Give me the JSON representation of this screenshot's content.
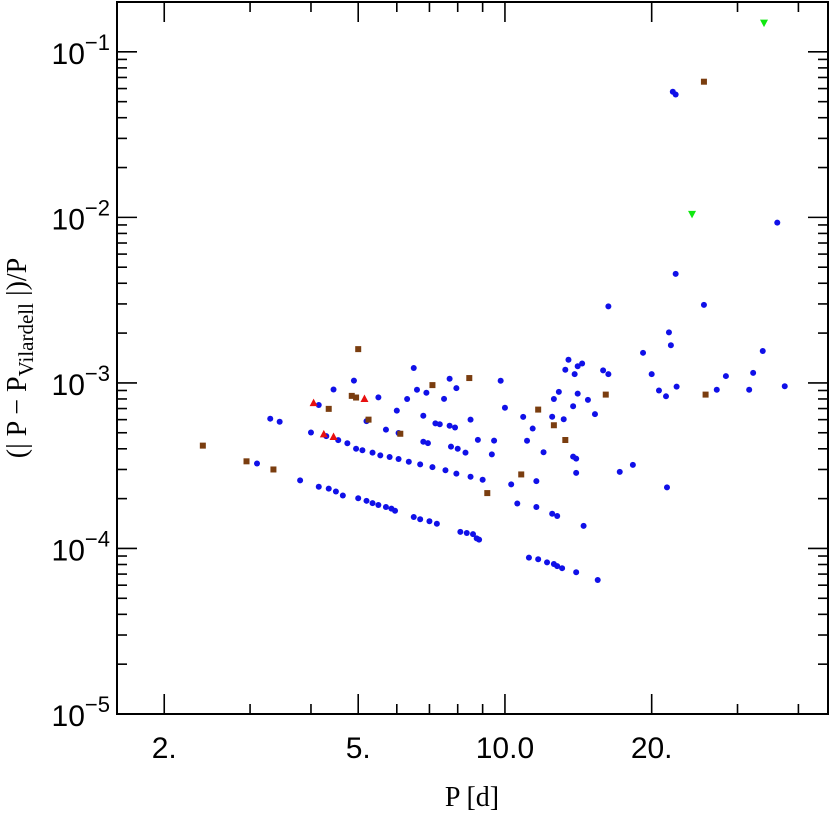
{
  "chart_data": {
    "type": "scatter",
    "xlabel": "P [d]",
    "ylabel_parts": {
      "prefix": "(| P − P",
      "subscript": "Vilardell",
      "suffix": " |)/P"
    },
    "xscale": "log",
    "yscale": "log",
    "xlim": [
      1.6,
      46
    ],
    "ylim": [
      1e-05,
      0.2
    ],
    "x_ticks": [
      {
        "value": 2,
        "label": "2."
      },
      {
        "value": 5,
        "label": "5."
      },
      {
        "value": 10,
        "label": "10.0"
      },
      {
        "value": 20,
        "label": "20."
      }
    ],
    "y_ticks": [
      {
        "value": 1e-05,
        "base": "10",
        "exp": "−5"
      },
      {
        "value": 0.0001,
        "base": "10",
        "exp": "−4"
      },
      {
        "value": 0.001,
        "base": "10",
        "exp": "−3"
      },
      {
        "value": 0.01,
        "base": "10",
        "exp": "−2"
      },
      {
        "value": 0.1,
        "base": "10",
        "exp": "−1"
      }
    ],
    "grid": false,
    "legend": "none",
    "series": [
      {
        "marker": "circle",
        "color": "#1010e8",
        "points": [
          [
            3.1,
            0.000326
          ],
          [
            3.3,
            0.000608
          ],
          [
            3.45,
            0.000583
          ],
          [
            3.8,
            0.000258
          ],
          [
            4.0,
            0.000502
          ],
          [
            4.15,
            0.000736
          ],
          [
            4.15,
            0.000236
          ],
          [
            4.3,
            0.000477
          ],
          [
            4.35,
            0.00023
          ],
          [
            4.45,
            0.000913
          ],
          [
            4.5,
            0.000221
          ],
          [
            4.55,
            0.000451
          ],
          [
            4.65,
            0.000209
          ],
          [
            4.75,
            0.000432
          ],
          [
            4.9,
            0.001033
          ],
          [
            4.95,
            0.0004
          ],
          [
            5.0,
            0.000201
          ],
          [
            5.1,
            0.000392
          ],
          [
            5.2,
            0.000588
          ],
          [
            5.2,
            0.000194
          ],
          [
            5.35,
            0.000379
          ],
          [
            5.35,
            0.000188
          ],
          [
            5.5,
            0.000818
          ],
          [
            5.5,
            0.000183
          ],
          [
            5.55,
            0.000365
          ],
          [
            5.7,
            0.000522
          ],
          [
            5.7,
            0.000178
          ],
          [
            5.8,
            0.000357
          ],
          [
            5.85,
            0.000174
          ],
          [
            5.95,
            0.000169
          ],
          [
            6.0,
            0.00068
          ],
          [
            6.05,
            0.000498
          ],
          [
            6.05,
            0.000347
          ],
          [
            6.3,
            0.0008
          ],
          [
            6.35,
            0.000334
          ],
          [
            6.5,
            0.00123
          ],
          [
            6.5,
            0.000155
          ],
          [
            6.6,
            0.00091
          ],
          [
            6.7,
            0.000322
          ],
          [
            6.7,
            0.00015
          ],
          [
            6.8,
            0.000633
          ],
          [
            6.8,
            0.000441
          ],
          [
            6.9,
            0.000872
          ],
          [
            6.95,
            0.000433
          ],
          [
            7.0,
            0.000146
          ],
          [
            7.1,
            0.00031
          ],
          [
            7.2,
            0.00057
          ],
          [
            7.25,
            0.000141
          ],
          [
            7.35,
            0.000563
          ],
          [
            7.5,
            0.000801
          ],
          [
            7.55,
            0.000297
          ],
          [
            7.7,
            0.000551
          ],
          [
            7.7,
            0.00106
          ],
          [
            7.75,
            0.000412
          ],
          [
            7.9,
            0.000538
          ],
          [
            7.95,
            0.00093
          ],
          [
            7.95,
            0.000283
          ],
          [
            8.0,
            0.0004
          ],
          [
            8.1,
            0.000126
          ],
          [
            8.3,
            0.000379
          ],
          [
            8.35,
            0.000124
          ],
          [
            8.5,
            0.0006
          ],
          [
            8.5,
            0.000271
          ],
          [
            8.6,
            0.000122
          ],
          [
            8.75,
            0.000115
          ],
          [
            8.8,
            0.000453
          ],
          [
            8.85,
            0.000113
          ],
          [
            9.0,
            0.00026
          ],
          [
            9.4,
            0.00037
          ],
          [
            9.5,
            0.000448
          ],
          [
            9.8,
            0.00103
          ],
          [
            10.0,
            0.000708
          ],
          [
            10.3,
            0.000244
          ],
          [
            10.6,
            0.000187
          ],
          [
            10.9,
            0.000624
          ],
          [
            11.1,
            0.000447
          ],
          [
            11.2,
            8.8e-05
          ],
          [
            11.4,
            0.00053
          ],
          [
            11.6,
            0.000255
          ],
          [
            11.6,
            0.000178
          ],
          [
            11.7,
            8.6e-05
          ],
          [
            12.0,
            0.000381
          ],
          [
            12.2,
            8.24e-05
          ],
          [
            12.5,
            0.000625
          ],
          [
            12.5,
            0.000162
          ],
          [
            12.6,
            0.0008
          ],
          [
            12.6,
            8.05e-05
          ],
          [
            12.8,
            0.000157
          ],
          [
            12.8,
            7.82e-05
          ],
          [
            12.9,
            0.000883
          ],
          [
            13.1,
            7.6e-05
          ],
          [
            13.2,
            0.000603
          ],
          [
            13.3,
            0.0012
          ],
          [
            13.5,
            0.00138
          ],
          [
            13.8,
            0.000723
          ],
          [
            13.8,
            0.000359
          ],
          [
            13.9,
            0.00113
          ],
          [
            14.0,
            0.000286
          ],
          [
            14.0,
            0.000349
          ],
          [
            14.0,
            7.18e-05
          ],
          [
            14.1,
            0.00126
          ],
          [
            14.1,
            0.000861
          ],
          [
            14.4,
            0.00131
          ],
          [
            14.5,
            0.000137
          ],
          [
            14.8,
            0.00079
          ],
          [
            15.3,
            0.000648
          ],
          [
            15.5,
            6.45e-05
          ],
          [
            15.9,
            0.00119
          ],
          [
            16.3,
            0.00113
          ],
          [
            16.3,
            0.0029
          ],
          [
            17.2,
            0.00029
          ],
          [
            18.3,
            0.00032
          ],
          [
            19.2,
            0.00152
          ],
          [
            20.0,
            0.00113
          ],
          [
            20.7,
            0.0009
          ],
          [
            21.4,
            0.00083
          ],
          [
            21.5,
            0.000234
          ],
          [
            21.7,
            0.00202
          ],
          [
            21.9,
            0.00169
          ],
          [
            22.1,
            0.0574
          ],
          [
            22.4,
            0.0552
          ],
          [
            22.4,
            0.00456
          ],
          [
            22.5,
            0.00095
          ],
          [
            25.6,
            0.00296
          ],
          [
            27.2,
            0.00091
          ],
          [
            28.4,
            0.0011
          ],
          [
            31.7,
            0.00091
          ],
          [
            32.3,
            0.00115
          ],
          [
            33.8,
            0.00156
          ],
          [
            36.2,
            0.0093
          ],
          [
            37.5,
            0.000955
          ]
        ]
      },
      {
        "marker": "square",
        "color": "#7a3d0f",
        "points": [
          [
            2.4,
            0.000418
          ],
          [
            2.95,
            0.000336
          ],
          [
            3.35,
            0.0003
          ],
          [
            4.35,
            0.000697
          ],
          [
            4.85,
            0.000835
          ],
          [
            4.95,
            0.000816
          ],
          [
            5.0,
            0.0016
          ],
          [
            5.25,
            0.0006
          ],
          [
            6.1,
            0.000493
          ],
          [
            7.1,
            0.00097
          ],
          [
            8.45,
            0.00107
          ],
          [
            9.2,
            0.000216
          ],
          [
            10.8,
            0.00028
          ],
          [
            11.7,
            0.00069
          ],
          [
            12.6,
            0.000555
          ],
          [
            13.3,
            0.000452
          ],
          [
            16.1,
            0.00085
          ],
          [
            25.6,
            0.066
          ],
          [
            25.8,
            0.00085
          ]
        ]
      },
      {
        "marker": "triangle-up",
        "color": "#e81010",
        "points": [
          [
            4.05,
            0.000755
          ],
          [
            4.25,
            0.000489
          ],
          [
            4.45,
            0.000471
          ],
          [
            5.15,
            0.0008
          ]
        ]
      },
      {
        "marker": "triangle-down",
        "color": "#10e810",
        "points": [
          [
            24.2,
            0.0105
          ],
          [
            34.0,
            0.15
          ]
        ]
      }
    ]
  }
}
